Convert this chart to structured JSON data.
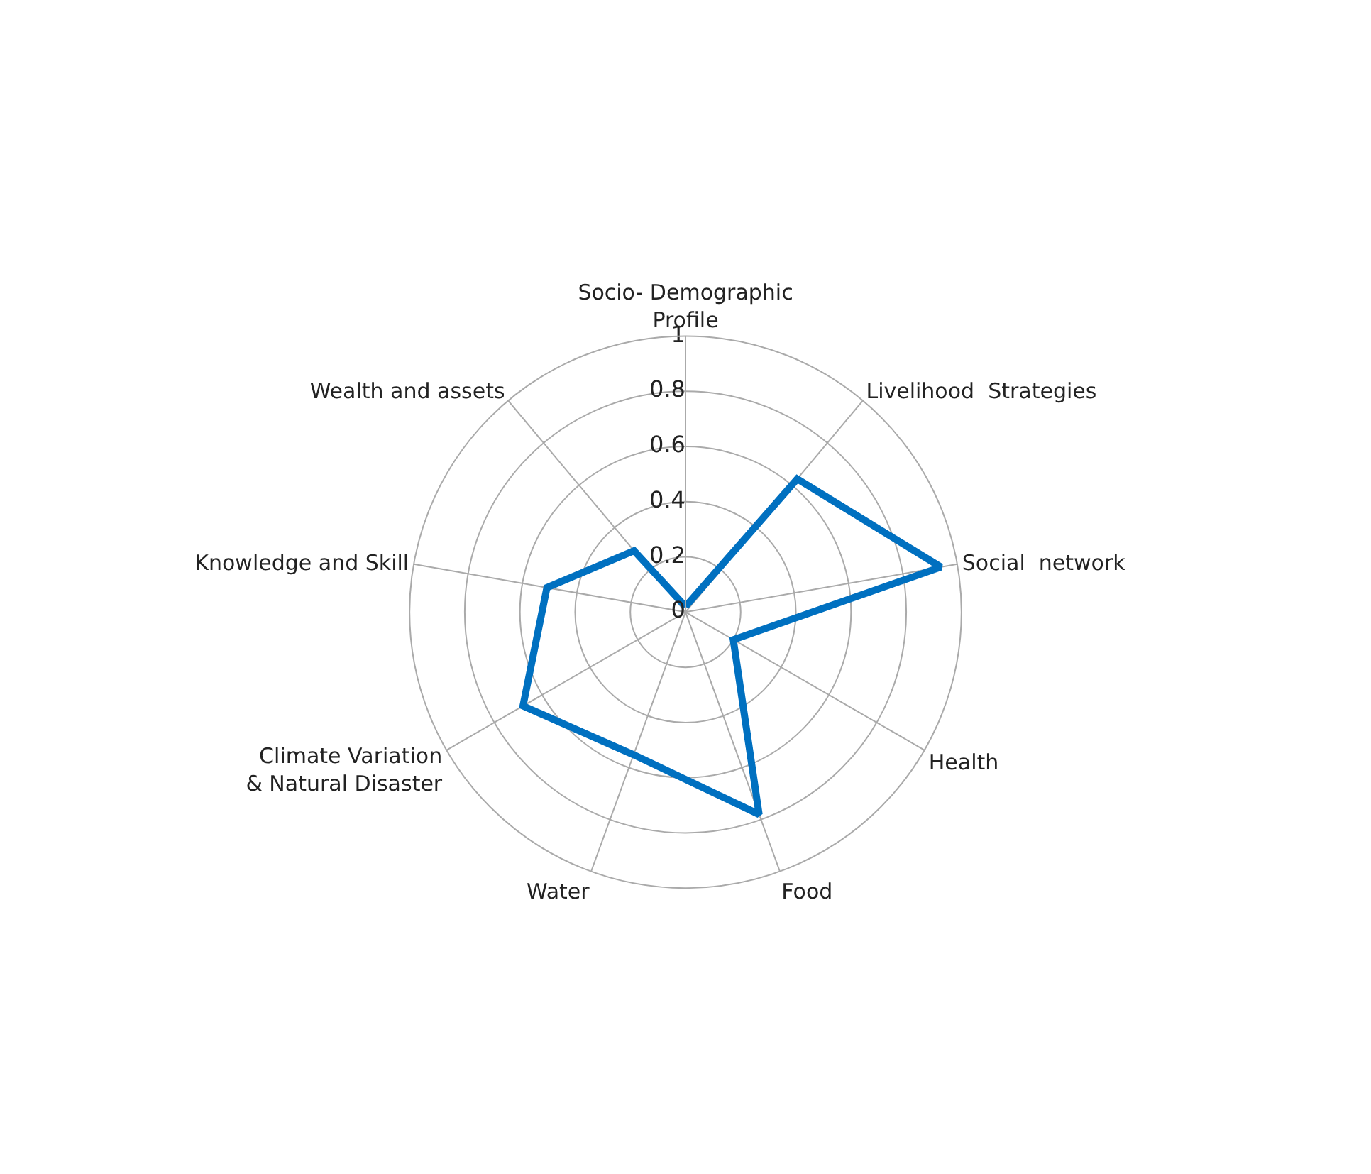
{
  "chart_data": {
    "type": "radar",
    "categories": [
      "Socio- Demographic Profile",
      "Livelihood  Strategies",
      "Social  network",
      "Health",
      "Food",
      "Water",
      "Climate Variation & Natural Disaster",
      "Knowledge and Skill",
      "Wealth and assets"
    ],
    "series": [
      {
        "color": "#0070c0",
        "values": [
          0.02,
          0.63,
          0.94,
          0.2,
          0.78,
          0.55,
          0.68,
          0.51,
          0.29
        ]
      }
    ],
    "ylim": [
      0,
      1
    ],
    "yticks": [
      0,
      0.2,
      0.4,
      0.6,
      0.8,
      1
    ],
    "grid": true,
    "marker": "none",
    "line_style": "solid"
  }
}
